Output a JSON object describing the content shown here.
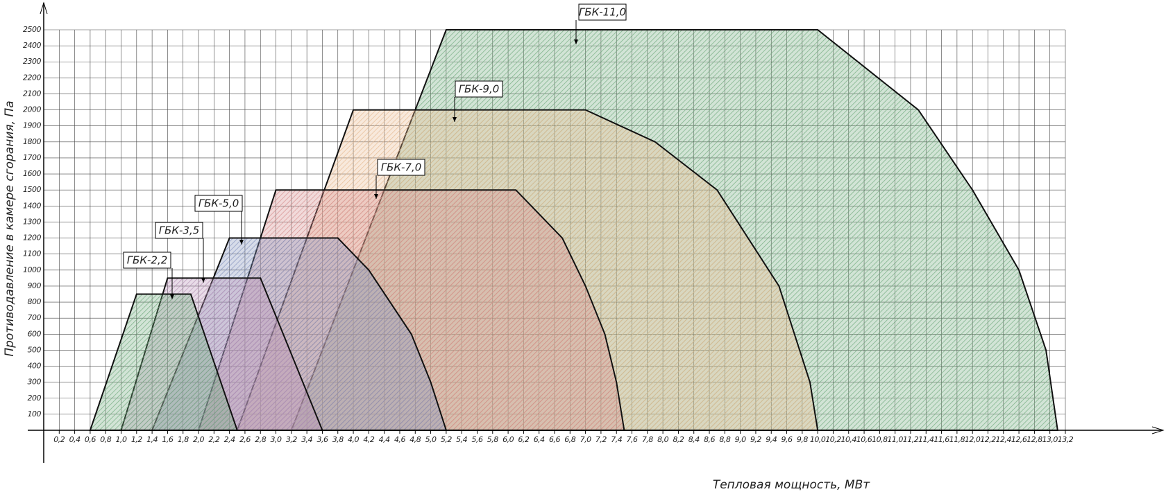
{
  "chart_data": {
    "type": "area",
    "x_label": "Тепловая мощность, МВт",
    "y_label": "Противодавление в камере сгорания, Па",
    "xlim": [
      0,
      13.2
    ],
    "ylim": [
      0,
      2500
    ],
    "grid": true,
    "xticks": [
      {
        "value": 0.2,
        "label": "0,2"
      },
      {
        "value": 0.4,
        "label": "0,4"
      },
      {
        "value": 0.6,
        "label": "0,6"
      },
      {
        "value": 0.8,
        "label": "0,8"
      },
      {
        "value": 1.0,
        "label": "1,0"
      },
      {
        "value": 1.2,
        "label": "1,2"
      },
      {
        "value": 1.4,
        "label": "1,4"
      },
      {
        "value": 1.6,
        "label": "1,6"
      },
      {
        "value": 1.8,
        "label": "1,8"
      },
      {
        "value": 2.0,
        "label": "2,0"
      },
      {
        "value": 2.2,
        "label": "2,2"
      },
      {
        "value": 2.4,
        "label": "2,4"
      },
      {
        "value": 2.6,
        "label": "2,6"
      },
      {
        "value": 2.8,
        "label": "2,8"
      },
      {
        "value": 3.0,
        "label": "3,0"
      },
      {
        "value": 3.2,
        "label": "3,2"
      },
      {
        "value": 3.4,
        "label": "3,4"
      },
      {
        "value": 3.6,
        "label": "3,6"
      },
      {
        "value": 3.8,
        "label": "3,8"
      },
      {
        "value": 4.0,
        "label": "4,0"
      },
      {
        "value": 4.2,
        "label": "4,2"
      },
      {
        "value": 4.4,
        "label": "4,4"
      },
      {
        "value": 4.6,
        "label": "4,6"
      },
      {
        "value": 4.8,
        "label": "4,8"
      },
      {
        "value": 5.0,
        "label": "5,0"
      },
      {
        "value": 5.2,
        "label": "5,2"
      },
      {
        "value": 5.4,
        "label": "5,4"
      },
      {
        "value": 5.6,
        "label": "5,6"
      },
      {
        "value": 5.8,
        "label": "5,8"
      },
      {
        "value": 6.0,
        "label": "6,0"
      },
      {
        "value": 6.2,
        "label": "6,2"
      },
      {
        "value": 6.4,
        "label": "6,4"
      },
      {
        "value": 6.6,
        "label": "6,6"
      },
      {
        "value": 6.8,
        "label": "6,8"
      },
      {
        "value": 7.0,
        "label": "7,0"
      },
      {
        "value": 7.2,
        "label": "7,2"
      },
      {
        "value": 7.4,
        "label": "7,4"
      },
      {
        "value": 7.6,
        "label": "7,6"
      },
      {
        "value": 7.8,
        "label": "7,8"
      },
      {
        "value": 8.0,
        "label": "8,0"
      },
      {
        "value": 8.2,
        "label": "8,2"
      },
      {
        "value": 8.4,
        "label": "8,4"
      },
      {
        "value": 8.6,
        "label": "8,6"
      },
      {
        "value": 8.8,
        "label": "8,8"
      },
      {
        "value": 9.0,
        "label": "9,0"
      },
      {
        "value": 9.2,
        "label": "9,2"
      },
      {
        "value": 9.4,
        "label": "9,4"
      },
      {
        "value": 9.6,
        "label": "9,6"
      },
      {
        "value": 9.8,
        "label": "9,8"
      },
      {
        "value": 10.0,
        "label": "10,0"
      },
      {
        "value": 10.2,
        "label": "10,2"
      },
      {
        "value": 10.4,
        "label": "10,4"
      },
      {
        "value": 10.6,
        "label": "10,6"
      },
      {
        "value": 10.8,
        "label": "10,8"
      },
      {
        "value": 11.0,
        "label": "11,0"
      },
      {
        "value": 11.2,
        "label": "11,2"
      },
      {
        "value": 11.4,
        "label": "11,4"
      },
      {
        "value": 11.6,
        "label": "11,6"
      },
      {
        "value": 11.8,
        "label": "11,8"
      },
      {
        "value": 12.0,
        "label": "12,0"
      },
      {
        "value": 12.2,
        "label": "12,2"
      },
      {
        "value": 12.4,
        "label": "12,4"
      },
      {
        "value": 12.6,
        "label": "12,6"
      },
      {
        "value": 12.8,
        "label": "12,8"
      },
      {
        "value": 13.0,
        "label": "13,0"
      },
      {
        "value": 13.2,
        "label": "13,2"
      }
    ],
    "yticks": [
      100,
      200,
      300,
      400,
      500,
      600,
      700,
      800,
      900,
      1000,
      1100,
      1200,
      1300,
      1400,
      1500,
      1600,
      1700,
      1800,
      1900,
      2000,
      2100,
      2200,
      2300,
      2400,
      2500
    ],
    "series": [
      {
        "name": "ГБК-11,0",
        "color": "#6fa97c",
        "x": [
          3.2,
          5.2,
          10.0,
          11.3,
          12.0,
          12.6,
          12.95,
          13.1
        ],
        "values": [
          0,
          2500,
          2500,
          2000,
          1500,
          1000,
          500,
          0
        ]
      },
      {
        "name": "ГБК-9,0",
        "color": "#e6b98f",
        "x": [
          2.5,
          4.0,
          7.0,
          7.9,
          8.7,
          9.1,
          9.5,
          9.7,
          9.9,
          10.0
        ],
        "values": [
          0,
          2000,
          2000,
          1800,
          1500,
          1200,
          900,
          600,
          300,
          0
        ]
      },
      {
        "name": "ГБК-7,0",
        "color": "#d48a8a",
        "x": [
          2.0,
          3.0,
          6.1,
          6.7,
          7.0,
          7.25,
          7.4,
          7.5
        ],
        "values": [
          0,
          1500,
          1500,
          1200,
          900,
          600,
          300,
          0
        ]
      },
      {
        "name": "ГБК-5,0",
        "color": "#8090bb",
        "x": [
          1.4,
          2.4,
          3.8,
          4.2,
          4.75,
          5.0,
          5.2
        ],
        "values": [
          0,
          1200,
          1200,
          1000,
          600,
          300,
          0
        ]
      },
      {
        "name": "ГБК-3,5",
        "color": "#b58fb5",
        "x": [
          1.0,
          1.6,
          2.8,
          3.6
        ],
        "values": [
          0,
          950,
          950,
          0
        ]
      },
      {
        "name": "ГБК-2,2",
        "color": "#6fa97c",
        "x": [
          0.6,
          1.2,
          1.9,
          2.5
        ],
        "values": [
          0,
          850,
          850,
          0
        ]
      }
    ]
  }
}
